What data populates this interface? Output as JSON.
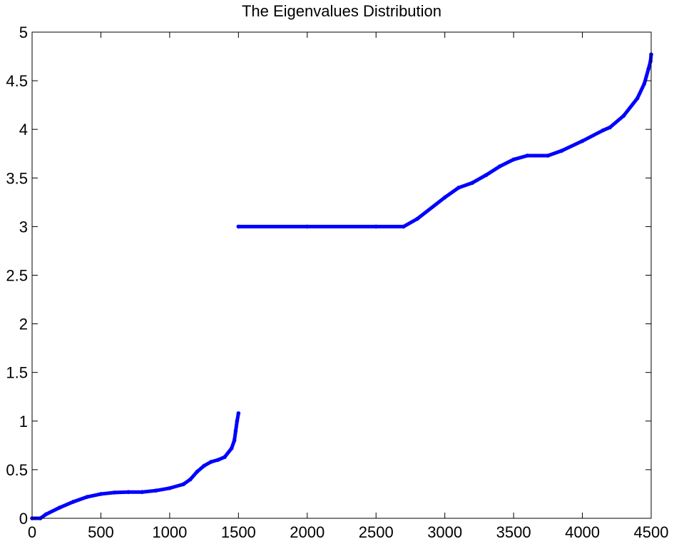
{
  "chart_data": {
    "type": "scatter",
    "title": "The Eigenvalues Distribution",
    "xlabel": "",
    "ylabel": "",
    "xlim": [
      0,
      4500
    ],
    "ylim": [
      0,
      5
    ],
    "x_ticks": [
      "0",
      "500",
      "1000",
      "1500",
      "2000",
      "2500",
      "3000",
      "3500",
      "4000",
      "4500"
    ],
    "y_ticks": [
      "0",
      "0.5",
      "1",
      "1.5",
      "2",
      "2.5",
      "3",
      "3.5",
      "4",
      "4.5",
      "5"
    ],
    "grid": false,
    "legend": "none",
    "series": [
      {
        "color": "#0000ff",
        "segments": [
          {
            "x": [
              0,
              60,
              100,
              200,
              300,
              400,
              500,
              600,
              700,
              800,
              900,
              1000,
              1100,
              1150,
              1200,
              1250,
              1300,
              1350,
              1400,
              1450,
              1470,
              1480,
              1490,
              1500
            ],
            "y": [
              0,
              0,
              0.04,
              0.11,
              0.17,
              0.22,
              0.25,
              0.265,
              0.27,
              0.27,
              0.285,
              0.31,
              0.35,
              0.4,
              0.48,
              0.54,
              0.58,
              0.6,
              0.63,
              0.72,
              0.8,
              0.9,
              1.0,
              1.08
            ]
          },
          {
            "x": [
              1500,
              2000,
              2500,
              2700,
              2800,
              3000,
              3100,
              3200,
              3300,
              3400,
              3500,
              3600,
              3750,
              3850,
              4000,
              4150,
              4200,
              4300,
              4400,
              4450,
              4480,
              4495,
              4500
            ],
            "y": [
              3,
              3,
              3,
              3,
              3.08,
              3.3,
              3.4,
              3.45,
              3.53,
              3.62,
              3.69,
              3.73,
              3.73,
              3.78,
              3.88,
              3.99,
              4.02,
              4.14,
              4.32,
              4.47,
              4.62,
              4.7,
              4.77
            ]
          }
        ]
      }
    ]
  }
}
